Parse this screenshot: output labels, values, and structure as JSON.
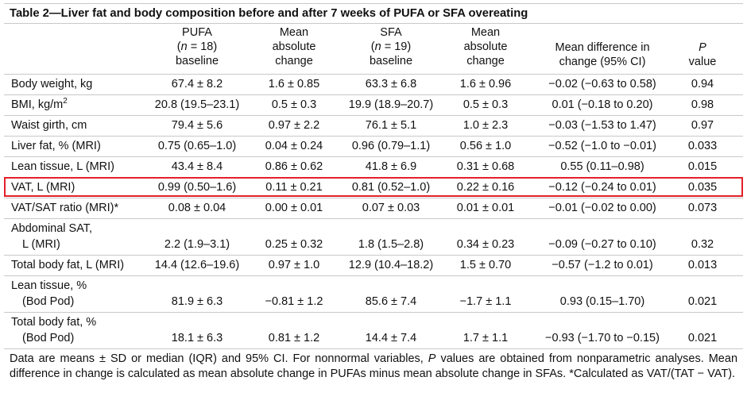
{
  "title": "Table 2—Liver fat and body composition before and after 7 weeks of PUFA or SFA overeating",
  "header": {
    "pufa": [
      "PUFA",
      "(",
      "n",
      " = 18)",
      "baseline"
    ],
    "pufa_change": [
      "Mean",
      "absolute",
      "change"
    ],
    "sfa": [
      "SFA",
      "(",
      "n",
      " = 19)",
      "baseline"
    ],
    "sfa_change": [
      "Mean",
      "absolute",
      "change"
    ],
    "difference": [
      "Mean difference in",
      "change (95% CI)"
    ],
    "p": [
      "P",
      "value"
    ]
  },
  "table": {
    "rows": [
      {
        "label": [
          "Body weight, kg"
        ],
        "cells": [
          "67.4 ± 8.2",
          "1.6 ± 0.85",
          "63.3 ± 6.8",
          "1.6 ± 0.96",
          "−0.02 (−0.63 to 0.58)",
          "0.94"
        ]
      },
      {
        "label": [
          "BMI, kg/m"
        ],
        "label_sup": "2",
        "cells": [
          "20.8 (19.5–23.1)",
          "0.5 ± 0.3",
          "19.9 (18.9–20.7)",
          "0.5 ± 0.3",
          "0.01 (−0.18 to 0.20)",
          "0.98"
        ]
      },
      {
        "label": [
          "Waist girth, cm"
        ],
        "cells": [
          "79.4 ± 5.6",
          "0.97 ± 2.2",
          "76.1 ± 5.1",
          "1.0 ± 2.3",
          "−0.03 (−1.53 to 1.47)",
          "0.97"
        ]
      },
      {
        "label": [
          "Liver fat, % (MRI)"
        ],
        "cells": [
          "0.75 (0.65–1.0)",
          "0.04 ± 0.24",
          "0.96 (0.79–1.1)",
          "0.56 ± 1.0",
          "−0.52 (−1.0 to −0.01)",
          "0.033"
        ]
      },
      {
        "label": [
          "Lean tissue, L (MRI)"
        ],
        "cells": [
          "43.4 ± 8.4",
          "0.86 ± 0.62",
          "41.8 ± 6.9",
          "0.31 ± 0.68",
          "0.55 (0.11–0.98)",
          "0.015"
        ]
      },
      {
        "label": [
          "VAT, L (MRI)"
        ],
        "cells": [
          "0.99 (0.50–1.6)",
          "0.11 ± 0.21",
          "0.81 (0.52–1.0)",
          "0.22 ± 0.16",
          "−0.12 (−0.24 to 0.01)",
          "0.035"
        ]
      },
      {
        "label": [
          "VAT/SAT ratio (MRI)*"
        ],
        "cells": [
          "0.08 ± 0.04",
          "0.00 ± 0.01",
          "0.07 ± 0.03",
          "0.01 ± 0.01",
          "−0.01 (−0.02 to 0.00)",
          "0.073"
        ]
      },
      {
        "label": [
          "Abdominal SAT,",
          "L (MRI)"
        ],
        "cells": [
          "2.2 (1.9–3.1)",
          "0.25 ± 0.32",
          "1.8 (1.5–2.8)",
          "0.34 ± 0.23",
          "−0.09 (−0.27 to 0.10)",
          "0.32"
        ]
      },
      {
        "label": [
          "Total body fat, L (MRI)"
        ],
        "cells": [
          "14.4 (12.6–19.6)",
          "0.97 ± 1.0",
          "12.9 (10.4–18.2)",
          "1.5 ± 0.70",
          "−0.57 (−1.2 to 0.01)",
          "0.013"
        ]
      },
      {
        "label": [
          "Lean tissue, %",
          "(Bod Pod)"
        ],
        "cells": [
          "81.9 ± 6.3",
          "−0.81 ± 1.2",
          "85.6 ± 7.4",
          "−1.7 ± 1.1",
          "0.93 (0.15–1.70)",
          "0.021"
        ]
      },
      {
        "label": [
          "Total body fat, %",
          "(Bod Pod)"
        ],
        "cells": [
          "18.1 ± 6.3",
          "0.81 ± 1.2",
          "14.4 ± 7.4",
          "1.7 ± 1.1",
          "−0.93 (−1.70 to −0.15)",
          "0.021"
        ]
      }
    ]
  },
  "footnote": [
    "Data are means ± SD or median (IQR) and 95% CI. For nonnormal variables, ",
    "P",
    " values are obtained from nonparametric analyses. Mean difference in change is calculated as mean absolute change in PUFAs minus mean absolute change in SFAs. *Calculated as VAT/(TAT − VAT)."
  ]
}
